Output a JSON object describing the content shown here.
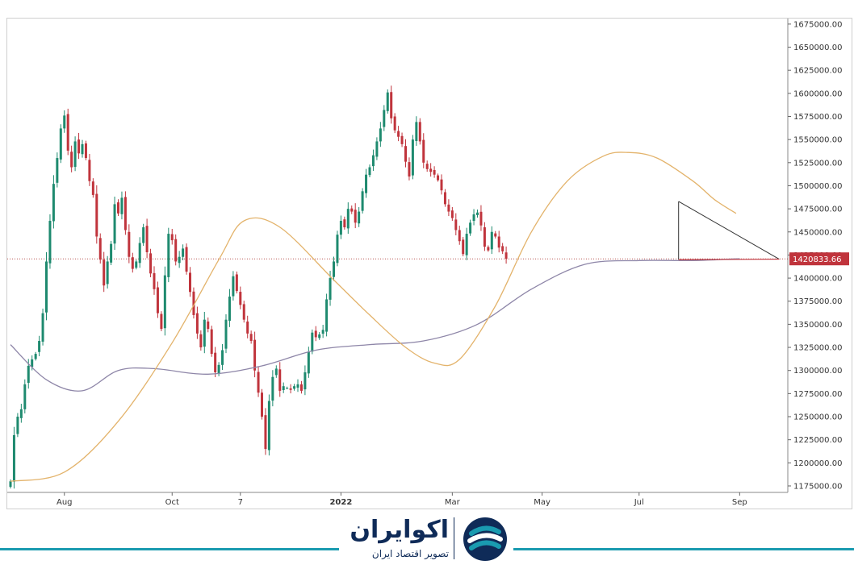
{
  "chart_data": {
    "type": "candlestick",
    "y_ticks": [
      1675000,
      1650000,
      1625000,
      1600000,
      1575000,
      1550000,
      1525000,
      1500000,
      1475000,
      1450000,
      1425000,
      1400000,
      1375000,
      1350000,
      1325000,
      1300000,
      1275000,
      1250000,
      1225000,
      1200000,
      1175000
    ],
    "y_tick_labels": [
      "1675000.00",
      "1650000.00",
      "1625000.00",
      "1600000.00",
      "1575000.00",
      "1550000.00",
      "1525000.00",
      "1500000.00",
      "1475000.00",
      "1450000.00",
      "1425000.00",
      "1400000.00",
      "1375000.00",
      "1350000.00",
      "1325000.00",
      "1300000.00",
      "1275000.00",
      "1250000.00",
      "1225000.00",
      "1200000.00",
      "1175000.00"
    ],
    "ylim": [
      1168000,
      1681000
    ],
    "x_tick_labels": [
      {
        "label": "Aug",
        "bar": 15,
        "bold": false
      },
      {
        "label": "Oct",
        "bar": 45,
        "bold": false
      },
      {
        "label": "7",
        "bar": 64,
        "bold": false
      },
      {
        "label": "2022",
        "bar": 92,
        "bold": true
      },
      {
        "label": "Mar",
        "bar": 123,
        "bold": false
      },
      {
        "label": "May",
        "bar": 148,
        "bold": false
      },
      {
        "label": "Jul",
        "bar": 175,
        "bold": false
      },
      {
        "label": "Sep",
        "bar": 203,
        "bold": false
      }
    ],
    "last_price": 1420833.66,
    "last_price_label": "1420833.66",
    "closes": [
      1180000,
      1230000,
      1250000,
      1258000,
      1285000,
      1305000,
      1312000,
      1318000,
      1332000,
      1362000,
      1418000,
      1462000,
      1502000,
      1530000,
      1562000,
      1576000,
      1538000,
      1520000,
      1548000,
      1535000,
      1545000,
      1530000,
      1505000,
      1490000,
      1445000,
      1420000,
      1392000,
      1418000,
      1437000,
      1480000,
      1470000,
      1487000,
      1452000,
      1423000,
      1410000,
      1418000,
      1438000,
      1455000,
      1428000,
      1405000,
      1388000,
      1362000,
      1345000,
      1403000,
      1448000,
      1441000,
      1418000,
      1423000,
      1432000,
      1407000,
      1385000,
      1360000,
      1340000,
      1325000,
      1355000,
      1345000,
      1318000,
      1298000,
      1306000,
      1322000,
      1355000,
      1380000,
      1402000,
      1386000,
      1371000,
      1355000,
      1340000,
      1332000,
      1300000,
      1276000,
      1250000,
      1215000,
      1267000,
      1293000,
      1302000,
      1278000,
      1283000,
      1281000,
      1279000,
      1283000,
      1285000,
      1278000,
      1298000,
      1320000,
      1341000,
      1336000,
      1339000,
      1344000,
      1377000,
      1400000,
      1418000,
      1447000,
      1462000,
      1455000,
      1475000,
      1472000,
      1460000,
      1472000,
      1494000,
      1512000,
      1520000,
      1533000,
      1548000,
      1562000,
      1582000,
      1601000,
      1573000,
      1560000,
      1553000,
      1545000,
      1526000,
      1510000,
      1550000,
      1569000,
      1548000,
      1525000,
      1518000,
      1515000,
      1512000,
      1506000,
      1495000,
      1480000,
      1472000,
      1465000,
      1452000,
      1440000,
      1426000,
      1448000,
      1460000,
      1469000,
      1471000,
      1457000,
      1434000,
      1430000,
      1450000,
      1445000,
      1433000,
      1429000,
      1421000
    ],
    "ma_fast": [
      [
        0,
        1180000
      ],
      [
        15,
        1190000
      ],
      [
        30,
        1245000
      ],
      [
        45,
        1330000
      ],
      [
        58,
        1420000
      ],
      [
        65,
        1462000
      ],
      [
        75,
        1455000
      ],
      [
        90,
        1398000
      ],
      [
        100,
        1360000
      ],
      [
        110,
        1325000
      ],
      [
        118,
        1308000
      ],
      [
        125,
        1312000
      ],
      [
        135,
        1370000
      ],
      [
        145,
        1450000
      ],
      [
        155,
        1505000
      ],
      [
        165,
        1532000
      ],
      [
        172,
        1536000
      ],
      [
        180,
        1530000
      ],
      [
        190,
        1505000
      ],
      [
        196,
        1485000
      ],
      [
        202,
        1470000
      ]
    ],
    "ma_slow": [
      [
        0,
        1328000
      ],
      [
        10,
        1290000
      ],
      [
        20,
        1278000
      ],
      [
        30,
        1300000
      ],
      [
        40,
        1302000
      ],
      [
        55,
        1296000
      ],
      [
        70,
        1305000
      ],
      [
        85,
        1322000
      ],
      [
        100,
        1328000
      ],
      [
        115,
        1332000
      ],
      [
        130,
        1350000
      ],
      [
        145,
        1388000
      ],
      [
        160,
        1415000
      ],
      [
        175,
        1419000
      ],
      [
        190,
        1419000
      ],
      [
        203,
        1421000
      ]
    ],
    "triangle": {
      "apex_start": [
        186,
        1483000
      ],
      "bottom_start": [
        186,
        1420000
      ],
      "apex_end": [
        214,
        1420500
      ]
    },
    "colors": {
      "up": "#1e8a6f",
      "down": "#c0343c",
      "ma_fast": "#e3b36b",
      "ma_slow": "#8e86a8",
      "triangle_upper": "#333333",
      "triangle_lower": "#c0343c",
      "price_line": "#b85450",
      "price_label_bg": "#c0343c"
    }
  },
  "footer": {
    "brand_name": "اکوایران",
    "tagline": "تصویر اقتصاد ایران",
    "colors": {
      "brand": "#0f2b58",
      "accent": "#1a9bb0"
    },
    "logo_icon": "ecoiran-logo-icon"
  }
}
